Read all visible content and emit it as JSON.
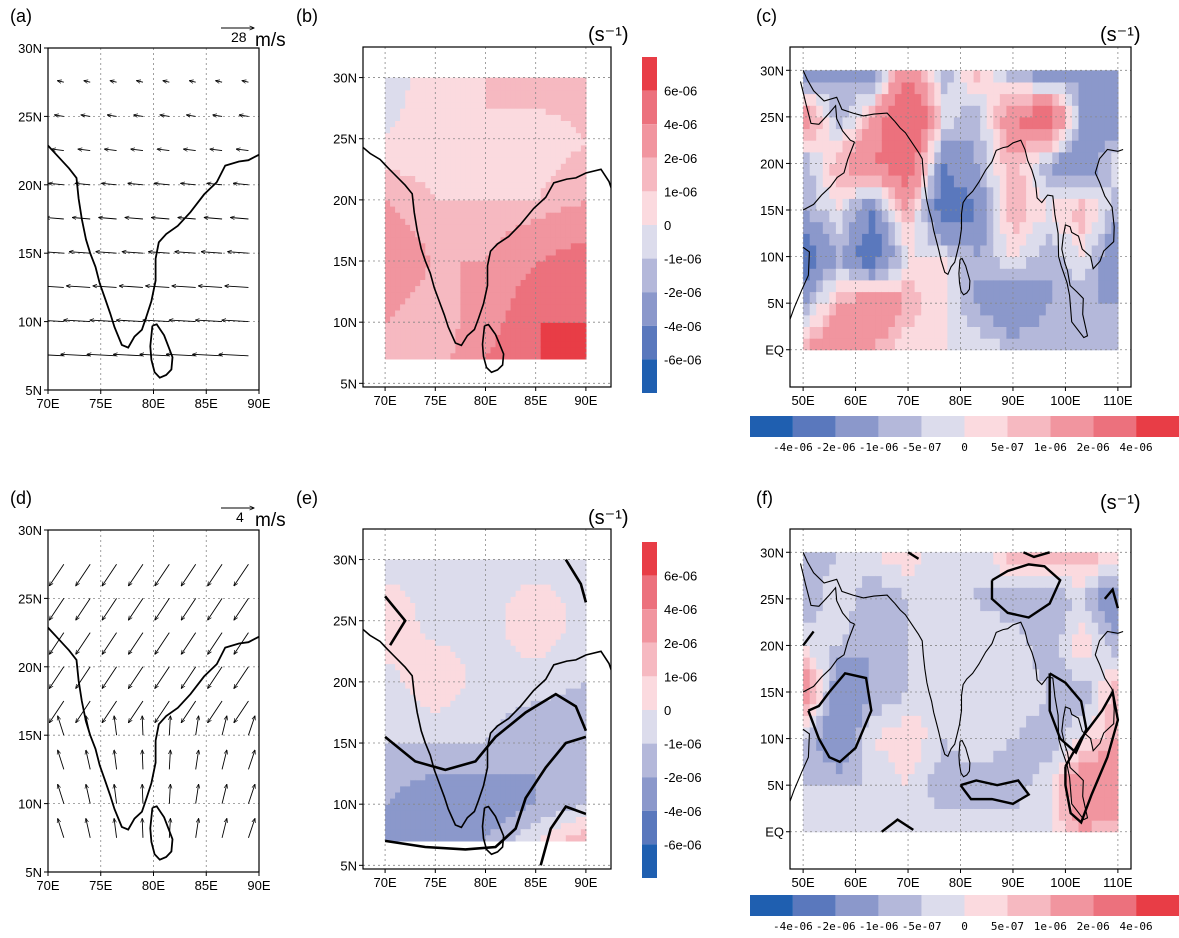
{
  "panels": {
    "a": {
      "label": "(a)",
      "ref_value": "28",
      "ref_unit": "m/s"
    },
    "b": {
      "label": "(b)",
      "unit": "(s⁻¹)"
    },
    "c": {
      "label": "(c)",
      "unit": "(s⁻¹)"
    },
    "d": {
      "label": "(d)",
      "ref_value": "4",
      "ref_unit": "m/s"
    },
    "e": {
      "label": "(e)",
      "unit": "(s⁻¹)"
    },
    "f": {
      "label": "(f)",
      "unit": "(s⁻¹)"
    }
  },
  "colors": {
    "levels": [
      "#1f5fb0",
      "#5a78bd",
      "#8b98cb",
      "#b4b8da",
      "#dcdcec",
      "#fbdadf",
      "#f6b9c1",
      "#f1959f",
      "#ec717d",
      "#e83d46"
    ]
  },
  "chart_data": [
    {
      "type": "vector",
      "panel": "a",
      "x_ticks": [
        "70E",
        "75E",
        "80E",
        "85E",
        "90E"
      ],
      "y_ticks": [
        "5N",
        "10N",
        "15N",
        "20N",
        "25N",
        "30N"
      ],
      "xlim": [
        70,
        90
      ],
      "ylim": [
        5,
        30
      ],
      "reference_vector": 28,
      "reference_unit": "m/s",
      "field": "strong easterly flow, magnitude increasing southward"
    },
    {
      "type": "heatmap",
      "panel": "b",
      "x_ticks": [
        "70E",
        "75E",
        "80E",
        "85E",
        "90E"
      ],
      "y_ticks": [
        "5N",
        "10N",
        "15N",
        "20N",
        "25N",
        "30N"
      ],
      "xlim": [
        70,
        90
      ],
      "ylim": [
        5,
        30
      ],
      "colorbar": [
        "6e-06",
        "4e-06",
        "2e-06",
        "1e-06",
        "0",
        "-1e-06",
        "-2e-06",
        "-4e-06",
        "-6e-06"
      ],
      "x": [
        70,
        75,
        80,
        85,
        90
      ],
      "y": [
        30,
        25,
        20,
        15,
        10,
        7
      ],
      "z": [
        [
          -5e-07,
          5e-07,
          1e-06,
          2e-06,
          2e-06
        ],
        [
          0,
          5e-07,
          1e-06,
          0,
          1e-06
        ],
        [
          2e-06,
          1e-06,
          1e-06,
          1e-06,
          2e-06
        ],
        [
          3e-06,
          2e-06,
          2e-06,
          4e-06,
          5e-06
        ],
        [
          2e-06,
          1e-06,
          3e-06,
          6e-06,
          6e-06
        ],
        [
          1e-06,
          1e-06,
          4e-06,
          6e-06,
          6e-06
        ]
      ]
    },
    {
      "type": "heatmap",
      "panel": "c",
      "x_ticks": [
        "50E",
        "60E",
        "70E",
        "80E",
        "90E",
        "100E",
        "110E"
      ],
      "y_ticks": [
        "EQ",
        "5N",
        "10N",
        "15N",
        "20N",
        "25N",
        "30N"
      ],
      "xlim": [
        50,
        110
      ],
      "ylim": [
        0,
        30
      ],
      "colorbar": [
        "-4e-06",
        "-2e-06",
        "-1e-06",
        "-5e-07",
        "0",
        "5e-07",
        "1e-06",
        "2e-06",
        "4e-06"
      ],
      "x": [
        50,
        57,
        63,
        70,
        77,
        83,
        90,
        97,
        103,
        110
      ],
      "y": [
        30,
        25,
        20,
        15,
        10,
        5,
        0
      ],
      "z": [
        [
          -2e-06,
          -1e-06,
          -2e-06,
          2e-06,
          -1e-06,
          1e-06,
          -1e-06,
          -2e-06,
          -1e-06,
          -2e-06
        ],
        [
          2e-06,
          -1e-06,
          1e-06,
          4e-06,
          0,
          -1e-06,
          2e-06,
          3e-06,
          -1e-06,
          -2e-06
        ],
        [
          -1e-06,
          1e-06,
          2e-06,
          3e-06,
          -2e-06,
          -1e-06,
          1e-06,
          -1e-06,
          -2e-06,
          0
        ],
        [
          -1e-06,
          0,
          -2e-06,
          1e-06,
          -3e-06,
          -2e-06,
          1e-06,
          0,
          1e-06,
          -1e-06
        ],
        [
          -3e-06,
          -1e-06,
          -3e-06,
          0,
          0,
          -1e-06,
          0,
          -1e-06,
          0,
          -2e-06
        ],
        [
          -1e-06,
          1e-06,
          2e-06,
          1e-06,
          0,
          -1e-06,
          -2e-06,
          -1e-06,
          -1e-06,
          -1e-06
        ],
        [
          1e-06,
          2e-06,
          1e-06,
          0,
          0,
          0,
          -5e-07,
          -5e-07,
          -5e-07,
          -1e-06
        ]
      ]
    },
    {
      "type": "vector",
      "panel": "d",
      "x_ticks": [
        "70E",
        "75E",
        "80E",
        "85E",
        "90E"
      ],
      "y_ticks": [
        "5N",
        "10N",
        "15N",
        "20N",
        "25N",
        "30N"
      ],
      "xlim": [
        70,
        90
      ],
      "ylim": [
        5,
        30
      ],
      "reference_vector": 4,
      "reference_unit": "m/s",
      "field": "northeasterly flow in north, southerly/southwesterly in south"
    },
    {
      "type": "heatmap",
      "panel": "e",
      "x_ticks": [
        "70E",
        "75E",
        "80E",
        "85E",
        "90E"
      ],
      "y_ticks": [
        "5N",
        "10N",
        "15N",
        "20N",
        "25N",
        "30N"
      ],
      "xlim": [
        70,
        90
      ],
      "ylim": [
        5,
        30
      ],
      "colorbar": [
        "6e-06",
        "4e-06",
        "2e-06",
        "1e-06",
        "0",
        "-1e-06",
        "-2e-06",
        "-4e-06",
        "-6e-06"
      ],
      "x": [
        70,
        75,
        80,
        85,
        90
      ],
      "y": [
        30,
        25,
        20,
        15,
        10,
        7
      ],
      "z": [
        [
          -5e-07,
          -5e-07,
          -5e-07,
          -5e-07,
          -5e-07
        ],
        [
          1e-06,
          -5e-07,
          -5e-07,
          1e-06,
          -5e-07
        ],
        [
          -5e-07,
          1e-06,
          -5e-07,
          -5e-07,
          -1e-06
        ],
        [
          -1e-06,
          -1e-06,
          -1e-06,
          -2e-06,
          -2e-06
        ],
        [
          -2e-06,
          -3e-06,
          -3e-06,
          -2e-06,
          -1e-06
        ],
        [
          -2e-06,
          -2e-06,
          -2e-06,
          0,
          2e-06
        ]
      ]
    },
    {
      "type": "heatmap",
      "panel": "f",
      "x_ticks": [
        "50E",
        "60E",
        "70E",
        "80E",
        "90E",
        "100E",
        "110E"
      ],
      "y_ticks": [
        "EQ",
        "5N",
        "10N",
        "15N",
        "20N",
        "25N",
        "30N"
      ],
      "xlim": [
        50,
        110
      ],
      "ylim": [
        0,
        30
      ],
      "colorbar": [
        "-4e-06",
        "-2e-06",
        "-1e-06",
        "-5e-07",
        "0",
        "5e-07",
        "1e-06",
        "2e-06",
        "4e-06"
      ],
      "x": [
        50,
        57,
        63,
        70,
        77,
        83,
        90,
        97,
        103,
        110
      ],
      "y": [
        30,
        25,
        20,
        15,
        10,
        5,
        0
      ],
      "z": [
        [
          -1e-06,
          -5e-07,
          0,
          5e-07,
          -5e-07,
          -5e-07,
          1e-06,
          1e-06,
          1e-06,
          5e-07
        ],
        [
          -1e-06,
          0,
          -1e-06,
          -5e-07,
          -5e-07,
          -5e-07,
          -1e-06,
          -1e-06,
          -5e-07,
          -2e-06
        ],
        [
          0,
          -5e-07,
          -1e-06,
          -5e-07,
          0,
          0,
          0,
          -1e-06,
          5e-07,
          -1e-06
        ],
        [
          2e-06,
          -2e-06,
          -1e-06,
          -5e-07,
          0,
          0,
          0,
          -5e-07,
          -1e-06,
          1e-06
        ],
        [
          -5e-07,
          -2e-06,
          0,
          5e-07,
          -5e-07,
          0,
          -5e-07,
          -1e-06,
          0,
          1e-06
        ],
        [
          -5e-07,
          -5e-07,
          -5e-07,
          0,
          -1e-06,
          -1e-06,
          -1e-06,
          0,
          2e-06,
          2e-06
        ],
        [
          -5e-07,
          -5e-07,
          0,
          0,
          0,
          0,
          0,
          0,
          1e-06,
          5e-07
        ]
      ]
    }
  ]
}
